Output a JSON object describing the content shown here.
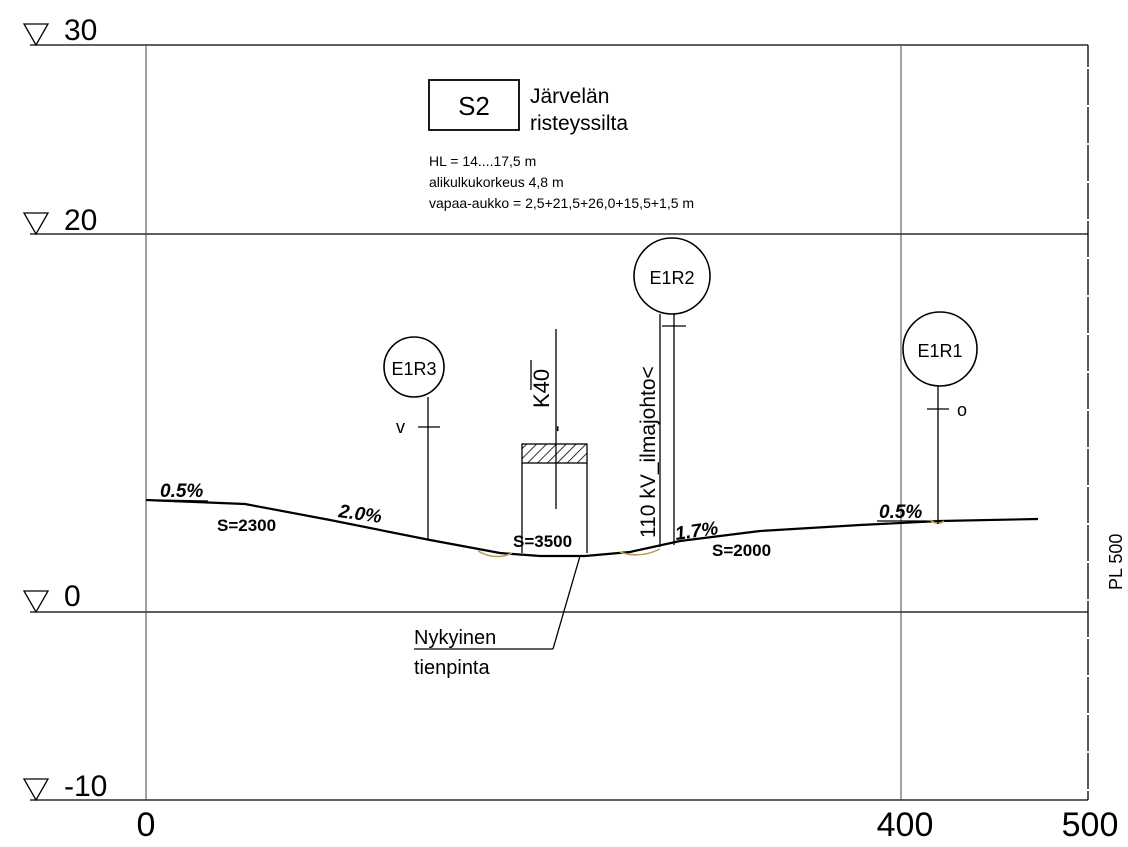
{
  "elevation_labels": {
    "e30": "30",
    "e20": "20",
    "e0": "0",
    "em10": "-10"
  },
  "station_labels": {
    "s0": "0",
    "s400": "400",
    "s500": "500"
  },
  "bridge": {
    "code": "S2",
    "name_line1": "Järvelän",
    "name_line2": "risteyssilta",
    "info_hl": "HL = 14....17,5 m",
    "info_clearance": "alikulkukorkeus 4,8 m",
    "info_opening": "vapaa-aukko = 2,5+21,5+26,0+15,5+1,5 m"
  },
  "markers": {
    "e1r3": "E1R3",
    "e1r2": "E1R2",
    "e1r1": "E1R1",
    "v_mark": "v",
    "o_mark": "o"
  },
  "annotations": {
    "k40": "K40",
    "k40_dash": "-",
    "power_line": "110 kV_ilmajohto<",
    "existing_line1": "Nykyinen",
    "existing_line2": "tienpinta",
    "pl": "PL 500"
  },
  "grades": {
    "g1": "0.5%",
    "g2": "2.0%",
    "g3": "1.7%",
    "g4": "0.5%",
    "s2300": "S=2300",
    "s3500": "S=3500",
    "s2000": "S=2000"
  }
}
